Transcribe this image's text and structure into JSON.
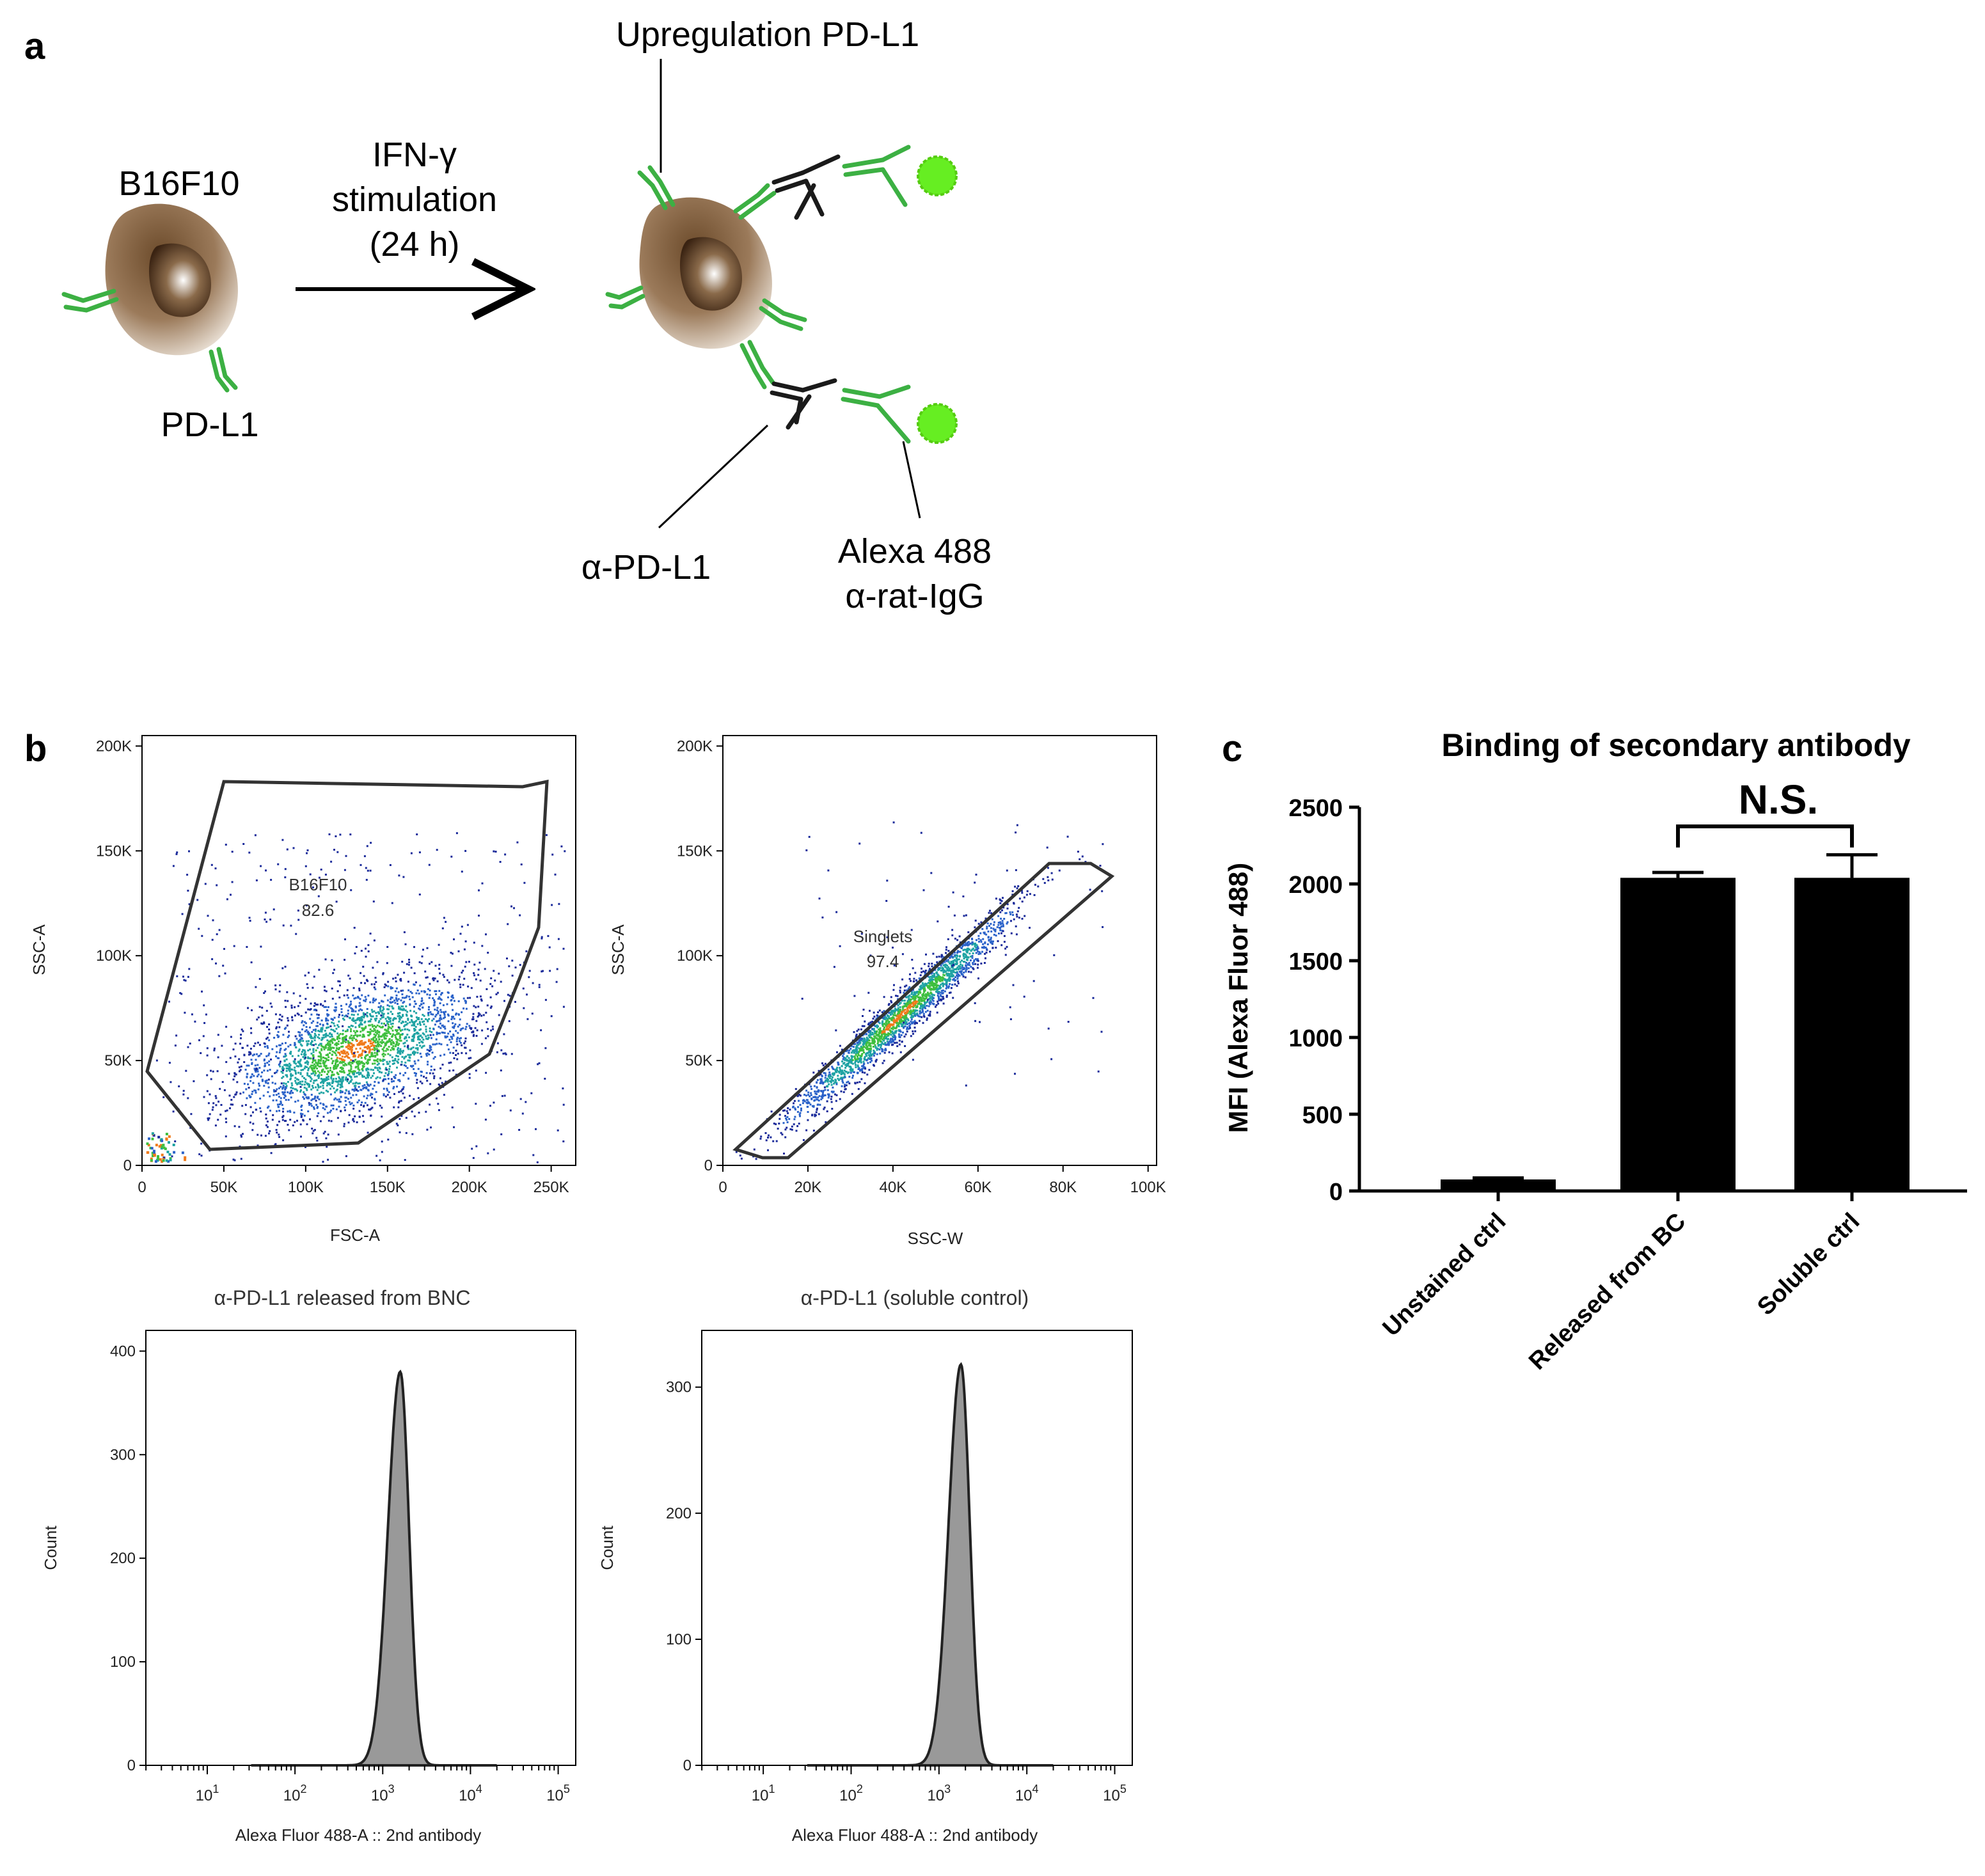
{
  "panel_labels": {
    "a": "a",
    "b": "b",
    "c": "c"
  },
  "schematic": {
    "cell_name": "B16F10",
    "receptor_label": "PD-L1",
    "arrow_label": [
      "IFN-γ",
      "stimulation",
      "(24 h)"
    ],
    "upregulation_label": "Upregulation PD-L1",
    "primary_antibody_label": "α-PD-L1",
    "secondary_antibody_label": [
      "Alexa 488",
      "α-rat-IgG"
    ],
    "colors": {
      "receptor": "#3cb043",
      "antibody": "#1a1a1a",
      "fluor": "#66ee22",
      "cell": "#6b4a2a"
    }
  },
  "flow": {
    "plot1": {
      "xlabel": "FSC-A",
      "ylabel": "SSC-A",
      "xticks": [
        "0",
        "50K",
        "100K",
        "150K",
        "200K",
        "250K"
      ],
      "yticks": [
        "0",
        "50K",
        "100K",
        "150K",
        "200K"
      ],
      "gate_name": "B16F10",
      "gate_value": "82.6"
    },
    "plot2": {
      "xlabel": "SSC-W",
      "ylabel": "SSC-A",
      "xticks": [
        "0",
        "20K",
        "40K",
        "60K",
        "80K",
        "100K"
      ],
      "yticks": [
        "0",
        "50K",
        "100K",
        "150K",
        "200K"
      ],
      "gate_name": "Singlets",
      "gate_value": "97.4"
    },
    "hist1": {
      "title": "α-PD-L1 released from BNC",
      "xlabel": "Alexa Fluor 488-A :: 2nd antibody",
      "ylabel": "Count",
      "yticks": [
        "0",
        "100",
        "200",
        "300",
        "400"
      ]
    },
    "hist2": {
      "title": "α-PD-L1 (soluble control)",
      "xlabel": "Alexa Fluor 488-A :: 2nd antibody",
      "ylabel": "Count",
      "yticks": [
        "0",
        "100",
        "200",
        "300"
      ]
    }
  },
  "chart_data": [
    {
      "type": "scatter",
      "title": "",
      "xlabel": "FSC-A",
      "ylabel": "SSC-A",
      "xlim": [
        0,
        265000
      ],
      "ylim": [
        0,
        205000
      ],
      "population_center": [
        130000,
        52000
      ],
      "gates": [
        {
          "name": "B16F10",
          "percent": 82.6
        }
      ]
    },
    {
      "type": "scatter",
      "title": "",
      "xlabel": "SSC-W",
      "ylabel": "SSC-A",
      "xlim": [
        0,
        102000
      ],
      "ylim": [
        0,
        205000
      ],
      "gates": [
        {
          "name": "Singlets",
          "percent": 97.4
        }
      ]
    },
    {
      "type": "area",
      "title": "α-PD-L1 released from BNC",
      "xlabel": "Alexa Fluor 488-A :: 2nd antibody",
      "ylabel": "Count",
      "xscale": "log",
      "xlim_log10": [
        0.3,
        5.2
      ],
      "ylim": [
        0,
        420
      ],
      "peak_log10": 3.2,
      "peak_count": 380
    },
    {
      "type": "area",
      "title": "α-PD-L1 (soluble control)",
      "xlabel": "Alexa Fluor 488-A :: 2nd antibody",
      "ylabel": "Count",
      "xscale": "log",
      "xlim_log10": [
        0.3,
        5.2
      ],
      "ylim": [
        0,
        345
      ],
      "peak_log10": 3.25,
      "peak_count": 318
    },
    {
      "type": "bar",
      "title": "Binding of secondary antibody",
      "ylabel": "MFI (Alexa Fluor 488)",
      "categories": [
        "Unstained ctrl",
        "Released from BC",
        "Soluble ctrl"
      ],
      "values": [
        75,
        2040,
        2040
      ],
      "errors": [
        10,
        35,
        150
      ],
      "ylim": [
        0,
        2500
      ],
      "yticks": [
        "0",
        "500",
        "1000",
        "1500",
        "2000",
        "2500"
      ],
      "annotation": "N.S."
    }
  ]
}
